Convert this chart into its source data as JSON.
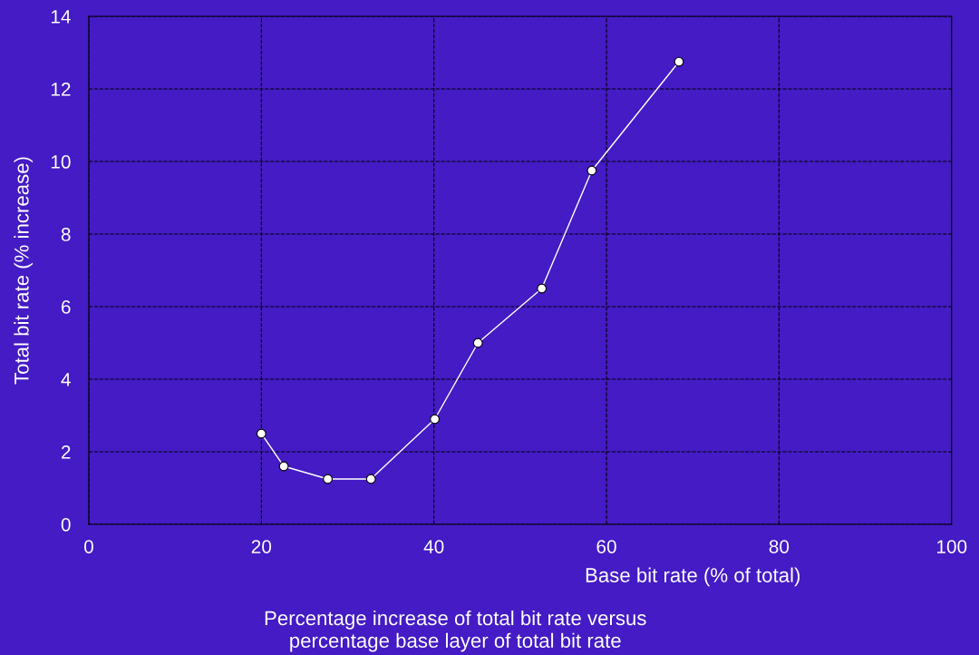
{
  "chart_data": {
    "type": "line",
    "title": "Percentage increase of total bit rate versus\npercentage base layer of total bit rate",
    "xlabel": "Base bit rate (% of total)",
    "ylabel": "Total bit rate (% increase)",
    "x": [
      20,
      22.6,
      27.7,
      32.7,
      40.1,
      45.1,
      52.5,
      58.3,
      68.4
    ],
    "series": [
      {
        "color": "#ffffff",
        "values": [
          2.5,
          1.6,
          1.25,
          1.25,
          2.9,
          5.0,
          6.5,
          9.75,
          12.75
        ]
      }
    ],
    "xlim": [
      0,
      100
    ],
    "xticks": [
      0,
      20,
      40,
      60,
      80,
      100
    ],
    "ylim": [
      0,
      14
    ],
    "yticks": [
      0,
      2,
      4,
      6,
      8,
      10,
      12,
      14
    ],
    "grid": true,
    "marker": "circle",
    "line_style": "solid",
    "legend": false
  }
}
